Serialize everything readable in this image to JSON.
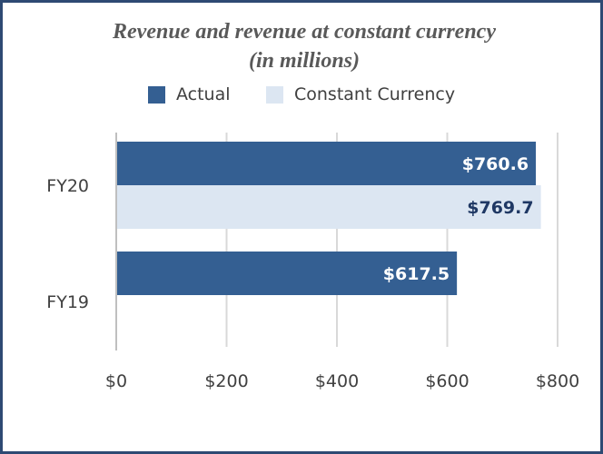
{
  "chart_data": {
    "type": "bar",
    "orientation": "horizontal",
    "title_line1": "Revenue and revenue at constant currency",
    "title_line2": "(in millions)",
    "categories": [
      "FY20",
      "FY19"
    ],
    "series": [
      {
        "name": "Actual",
        "values": [
          760.6,
          617.5
        ],
        "labels": [
          "$760.6",
          "$617.5"
        ],
        "color": "#345f92",
        "label_color": "#ffffff"
      },
      {
        "name": "Constant Currency",
        "values": [
          769.7,
          null
        ],
        "labels": [
          "$769.7",
          ""
        ],
        "color": "#dce6f2",
        "label_color": "#1f3864"
      }
    ],
    "x_ticks": [
      0,
      200,
      400,
      600,
      800
    ],
    "x_tick_labels": [
      "$0",
      "$200",
      "$400",
      "$600",
      "$800"
    ],
    "xlim": [
      0,
      800
    ],
    "grid": true,
    "legend_position": "top"
  }
}
